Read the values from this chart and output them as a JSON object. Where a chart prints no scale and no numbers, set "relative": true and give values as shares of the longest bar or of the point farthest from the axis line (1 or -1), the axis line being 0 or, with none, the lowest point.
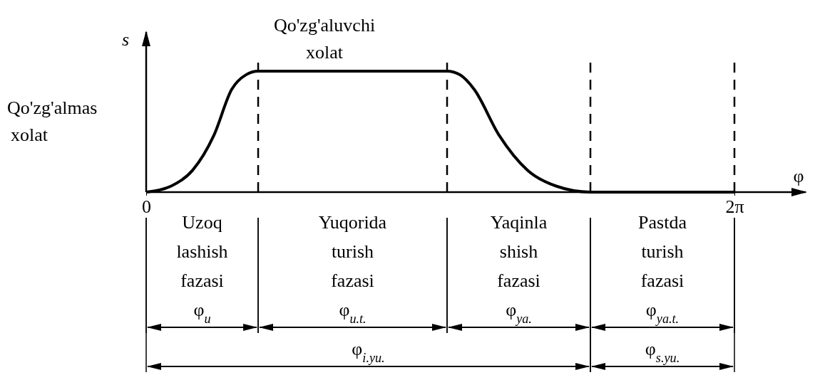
{
  "chart_data": {
    "type": "line",
    "relative": true,
    "xlabel": "φ",
    "ylabel": "s",
    "x": [
      0,
      0.267,
      0.495,
      0.7235,
      0.914,
      1.066,
      1.196,
      3.214,
      3.351,
      3.503,
      3.77,
      4.075,
      4.379,
      4.745,
      6.2832
    ],
    "series": [
      {
        "color": "#000000",
        "values": [
          0,
          0.05,
          0.18,
          0.47,
          0.85,
          0.97,
          1,
          1,
          0.97,
          0.85,
          0.47,
          0.18,
          0.05,
          0,
          0
        ]
      }
    ],
    "xlim": [
      0,
      7.045
    ],
    "xticks": [
      0,
      {
        "value": 6.2832,
        "label": "2π"
      }
    ],
    "ref_lines": [
      {
        "axis": "x",
        "value": 1.196,
        "line_style": "dashed"
      },
      {
        "axis": "x",
        "value": 3.214,
        "line_style": "dashed"
      },
      {
        "axis": "x",
        "value": 4.745,
        "line_style": "dashed"
      },
      {
        "axis": "x",
        "value": 6.2832,
        "line_style": "dashed"
      }
    ],
    "annotations": [
      {
        "text": "Qo'zg'aluvchi\nxolat",
        "x": 1.904,
        "y": 1
      },
      "Qo'zg'almas\nxolat",
      "Uzoq\nlashish\nfazasi\nφ$_{u}$",
      "Yuqorida\nturish\nfazasi\nφ$_{u.t.}$",
      "Yaqinla\nshish\nfazasi\nφ$_{ya.}$",
      "Pastda\nturish\nfazasi\nφ$_{ya.t.}$",
      "φ$_{i.yu.}$",
      "φ$_{s.yu.}$"
    ]
  }
}
